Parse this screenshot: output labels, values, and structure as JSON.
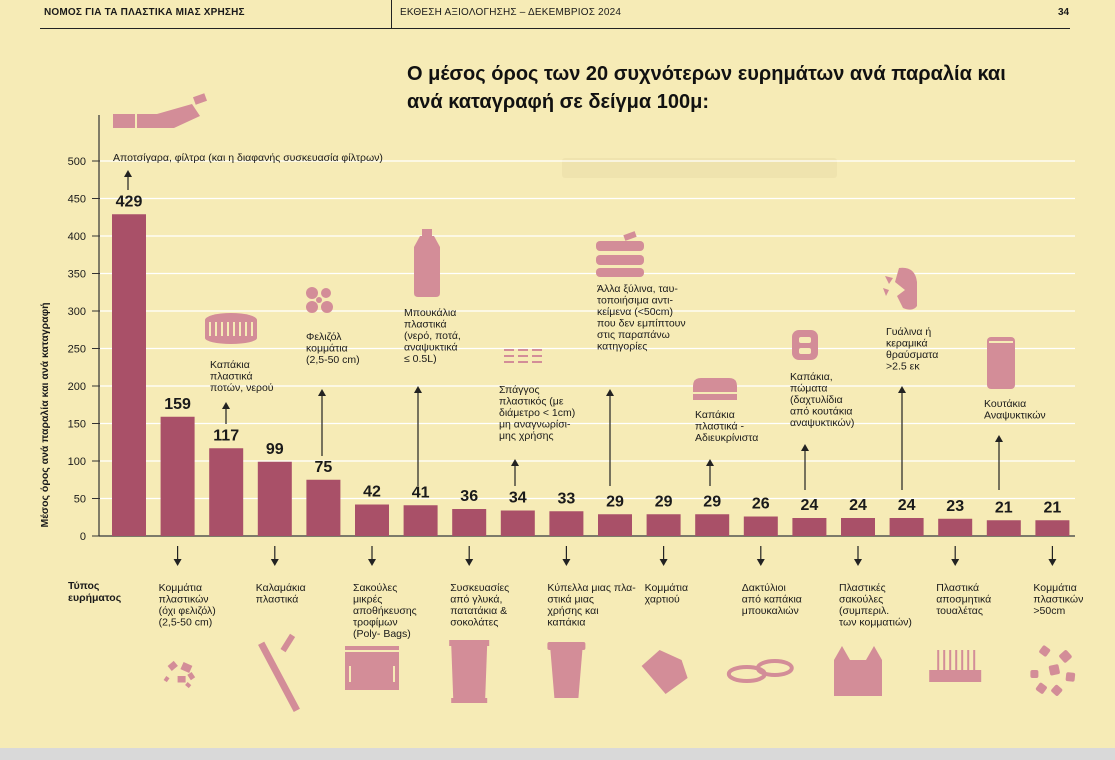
{
  "header": {
    "left": "ΝΟΜΟΣ ΓΙΑ ΤΑ ΠΛΑΣΤΙΚΑ ΜΙΑΣ ΧΡΗΣΗΣ",
    "middle": "ΕΚΘΕΣΗ ΑΞΙΟΛΟΓΗΣΗΣ – ΔΕΚΕΜΒΡΙΟΣ 2024",
    "page": "34"
  },
  "colors": {
    "background": "#f6ebb6",
    "bar": "#a95068",
    "icon": "#d38d98",
    "gridline": "#ffffff"
  },
  "chart_data": {
    "type": "bar",
    "title": "Ο μέσος όρος των 20 συχνότερων ευρημάτων ανά παραλία και ανά καταγραφή σε δείγμα 100μ:",
    "ylabel": "Μέσος όρος ανά παραλία και ανά καταγραφή",
    "xlabel": "Τύπος ευρήματος",
    "ylim": [
      0,
      500
    ],
    "yticks": [
      0,
      50,
      100,
      150,
      200,
      250,
      300,
      350,
      400,
      450,
      500
    ],
    "grid": true,
    "categories": [
      "Αποτσίγαρα, φίλτρα (και η διαφανής συσκευασία φίλτρων)",
      "Κομμάτια πλαστικών (όχι φελιζόλ) (2,5-50 cm)",
      "Καπάκια πλαστικά ποτών, νερού",
      "Καλαμάκια πλαστικά",
      "Φελιζόλ κομμάτια (2,5-50 cm)",
      "Σακούλες μικρές αποθήκευσης τροφίμων (Poly- Bags)",
      "Μπουκάλια πλαστικά (νερό, ποτά, αναψυκτικά ≤ 0.5L)",
      "Συσκευασίες από γλυκά, πατατάκια & σοκολάτες",
      "Σπάγγος πλαστικός (με διάμετρο < 1cm) μη αναγνωρίσι- μης χρήσης",
      "Κύπελλα μιας χρήσης και καπάκια",
      "Άλλα ξύλινα, ταυ- τοποιήσιμα αντι- κείμενα (<50cm) που δεν εμπίπτουν στις παραπάνω κατηγορίες",
      "Κομμάτια χαρτιού",
      "Καπάκια πλαστικά - Αδιευκρίνιστα",
      "Δακτύλιοι από καπάκια μπουκαλιών",
      "Καπάκια, πώματα (δαχτυλίδια από κουτάκια αναψυκτικών)",
      "Πλαστικές σακούλες (συμπεριλ. των κομματιών)",
      "Γυάλινα ή κεραμικά θραύσματα >2.5 εκ",
      "Πλαστικά αποσμητικά τουαλέτας",
      "Κουτάκια Αναψυκτικών",
      "Κομμάτια πλαστικών >50cm"
    ],
    "values": [
      429,
      159,
      117,
      99,
      75,
      42,
      41,
      36,
      34,
      33,
      29,
      29,
      29,
      26,
      24,
      24,
      24,
      23,
      21,
      21
    ]
  },
  "top_labels": [
    {
      "bar": 0,
      "lines": [
        "Αποτσίγαρα, φίλτρα (και η διαφανής συσκευασία φίλτρων)"
      ],
      "icon": "cigarette-icon"
    },
    {
      "bar": 2,
      "lines": [
        "Καπάκια",
        "πλαστικά",
        "ποτών, νερού"
      ],
      "icon": "bottle-cap-icon"
    },
    {
      "bar": 4,
      "lines": [
        "Φελιζόλ",
        "κομμάτια",
        "(2,5-50 cm)"
      ],
      "icon": "polystyrene-icon"
    },
    {
      "bar": 6,
      "lines": [
        "Μπουκάλια",
        "πλαστικά",
        "(νερό, ποτά,",
        "αναψυκτικά",
        "≤ 0.5L)"
      ],
      "icon": "bottle-icon"
    },
    {
      "bar": 8,
      "lines": [
        "Σπάγγος",
        "πλαστικός (με",
        "διάμετρο < 1cm)",
        "μη αναγνωρίσι-",
        "μης χρήσης"
      ],
      "icon": "string-icon"
    },
    {
      "bar": 10,
      "lines": [
        "Άλλα ξύλινα, ταυ-",
        "τοποιήσιμα αντι-",
        "κείμενα (<50cm)",
        "που δεν εμπίπτουν",
        "στις παραπάνω",
        "κατηγορίες"
      ],
      "icon": "wood-icon"
    },
    {
      "bar": 12,
      "lines": [
        "Καπάκια",
        "πλαστικά -",
        "Αδιευκρίνιστα"
      ],
      "icon": "lid-icon"
    },
    {
      "bar": 14,
      "lines": [
        "Καπάκια,",
        "πώματα",
        "(δαχτυλίδια",
        "από κουτάκια",
        "αναψυκτικών)"
      ],
      "icon": "can-tab-icon"
    },
    {
      "bar": 16,
      "lines": [
        "Γυάλινα ή",
        "κεραμικά",
        "θραύσματα",
        ">2.5 εκ"
      ],
      "icon": "glass-shards-icon"
    },
    {
      "bar": 18,
      "lines": [
        "Κουτάκια",
        "Αναψυκτικών"
      ],
      "icon": "soda-can-icon"
    }
  ],
  "bottom_labels": [
    {
      "bar": 1,
      "lines": [
        "Κομμάτια",
        "πλαστικών",
        "(όχι φελιζόλ)",
        "(2,5-50 cm)"
      ],
      "icon": "plastic-pieces-icon"
    },
    {
      "bar": 3,
      "lines": [
        "Καλαμάκια",
        "πλαστικά"
      ],
      "icon": "straw-icon"
    },
    {
      "bar": 5,
      "lines": [
        "Σακούλες",
        "μικρές",
        "αποθήκευσης",
        "τροφίμων",
        "(Poly- Bags)"
      ],
      "icon": "food-bag-icon"
    },
    {
      "bar": 7,
      "lines": [
        "Συσκευασίες",
        "από γλυκά,",
        "πατατάκια &",
        "σοκολάτες"
      ],
      "icon": "snack-wrapper-icon"
    },
    {
      "bar": 9,
      "lines": [
        "Κύπελλα μιας πλα-",
        "στικά μιας",
        "χρήσης και",
        "καπάκια"
      ],
      "icon": "cup-icon"
    },
    {
      "bar": 11,
      "lines": [
        "Κομμάτια",
        "χαρτιού"
      ],
      "icon": "paper-icon"
    },
    {
      "bar": 13,
      "lines": [
        "Δακτύλιοι",
        "από καπάκια",
        "μπουκαλιών"
      ],
      "icon": "rings-icon"
    },
    {
      "bar": 15,
      "lines": [
        "Πλαστικές",
        "σακούλες",
        "(συμπεριλ.",
        "των κομματιών)"
      ],
      "icon": "plastic-bag-icon"
    },
    {
      "bar": 17,
      "lines": [
        "Πλαστικά",
        "αποσμητικά",
        "τουαλέτας"
      ],
      "icon": "deodorizer-icon"
    },
    {
      "bar": 19,
      "lines": [
        "Κομμάτια",
        "πλαστικών",
        ">50cm"
      ],
      "icon": "large-pieces-icon"
    }
  ],
  "xlabel_lines": [
    "Τύπος",
    "ευρήματος"
  ]
}
